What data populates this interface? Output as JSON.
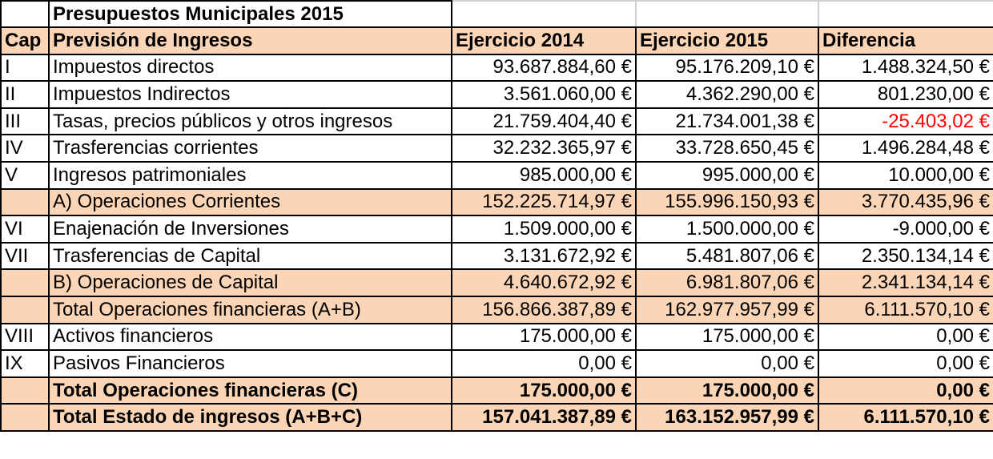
{
  "title": "Presupuestos Municipales 2015",
  "headers": {
    "cap": "Cap",
    "description": "Previsión de Ingresos",
    "year_2014": "Ejercicio 2014",
    "year_2015": "Ejercicio 2015",
    "difference": "Diferencia"
  },
  "rows": [
    {
      "cap": "I",
      "description": "Impuestos directos",
      "e2014": "93.687.884,60 €",
      "e2015": "95.176.209,10 €",
      "diff": "1.488.324,50 €"
    },
    {
      "cap": "II",
      "description": "Impuestos Indirectos",
      "e2014": "3.561.060,00 €",
      "e2015": "4.362.290,00 €",
      "diff": "801.230,00 €"
    },
    {
      "cap": "III",
      "description": "Tasas, precios públicos y otros ingresos",
      "e2014": "21.759.404,40 €",
      "e2015": "21.734.001,38 €",
      "diff": "-25.403,02 €"
    },
    {
      "cap": "IV",
      "description": "Trasferencias corrientes",
      "e2014": "32.232.365,97 €",
      "e2015": "33.728.650,45 €",
      "diff": "1.496.284,48 €"
    },
    {
      "cap": "V",
      "description": "Ingresos patrimoniales",
      "e2014": "985.000,00 €",
      "e2015": "995.000,00 €",
      "diff": "10.000,00 €"
    },
    {
      "cap": "",
      "description": "A) Operaciones Corrientes",
      "e2014": "152.225.714,97 €",
      "e2015": "155.996.150,93 €",
      "diff": "3.770.435,96 €"
    },
    {
      "cap": "VI",
      "description": "Enajenación de Inversiones",
      "e2014": "1.509.000,00 €",
      "e2015": "1.500.000,00 €",
      "diff": "-9.000,00 €"
    },
    {
      "cap": "VII",
      "description": "Trasferencias de Capital",
      "e2014": "3.131.672,92 €",
      "e2015": "5.481.807,06 €",
      "diff": "2.350.134,14 €"
    },
    {
      "cap": "",
      "description": "B) Operaciones de Capital",
      "e2014": "4.640.672,92 €",
      "e2015": "6.981.807,06 €",
      "diff": "2.341.134,14 €"
    },
    {
      "cap": "",
      "description": "Total Operaciones financieras (A+B)",
      "e2014": "156.866.387,89 €",
      "e2015": "162.977.957,99 €",
      "diff": "6.111.570,10 €"
    },
    {
      "cap": "VIII",
      "description": "Activos financieros",
      "e2014": "175.000,00 €",
      "e2015": "175.000,00 €",
      "diff": "0,00 €"
    },
    {
      "cap": "IX",
      "description": "Pasivos Financieros",
      "e2014": "0,00 €",
      "e2015": "0,00 €",
      "diff": "0,00 €"
    },
    {
      "cap": "",
      "description": "Total Operaciones financieras (C)",
      "e2014": "175.000,00 €",
      "e2015": "175.000,00 €",
      "diff": "0,00 €"
    },
    {
      "cap": "",
      "description": "Total Estado de ingresos (A+B+C)",
      "e2014": "157.041.387,89 €",
      "e2015": "163.152.957,99 €",
      "diff": "6.111.570,10 €"
    }
  ],
  "colors": {
    "highlight_fill": "#fbd5b5",
    "negative_text": "#ff0000",
    "grid": "#000000"
  }
}
